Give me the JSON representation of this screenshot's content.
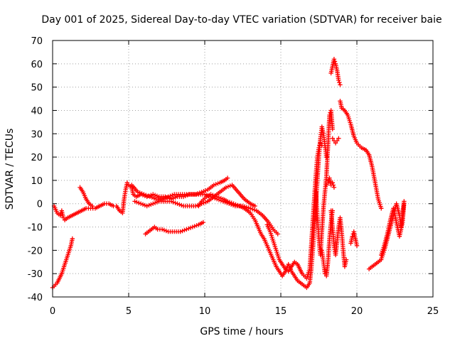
{
  "chart_data": {
    "type": "scatter",
    "title": "Day 001 of 2025, Sidereal Day-to-day VTEC variation (SDTVAR) for receiver baie",
    "xlabel": "GPS time / hours",
    "ylabel": "SDTVAR / TECUs",
    "xlim": [
      0,
      25
    ],
    "ylim": [
      -40,
      70
    ],
    "xticks": [
      0,
      5,
      10,
      15,
      20,
      25
    ],
    "yticks": [
      -40,
      -30,
      -20,
      -10,
      0,
      10,
      20,
      30,
      40,
      50,
      60,
      70
    ],
    "grid": true,
    "marker": "+",
    "color": "#ff0000",
    "series": [
      {
        "name": "seg1",
        "points": [
          [
            0.0,
            -36
          ],
          [
            0.3,
            -34
          ],
          [
            0.6,
            -30
          ],
          [
            0.9,
            -24
          ],
          [
            1.2,
            -18
          ],
          [
            1.3,
            -15
          ]
        ]
      },
      {
        "name": "seg2",
        "points": [
          [
            0.1,
            -1
          ],
          [
            0.3,
            -4
          ],
          [
            0.5,
            -5
          ],
          [
            0.6,
            -3
          ],
          [
            0.7,
            -6
          ],
          [
            0.8,
            -7
          ],
          [
            1.0,
            -6
          ],
          [
            1.3,
            -5
          ],
          [
            1.6,
            -4
          ],
          [
            1.9,
            -3
          ],
          [
            2.2,
            -2
          ],
          [
            2.5,
            -2
          ],
          [
            2.8,
            -2
          ],
          [
            3.1,
            -1
          ],
          [
            3.4,
            0
          ],
          [
            3.7,
            0
          ],
          [
            4.0,
            -1
          ],
          [
            4.2,
            -1
          ],
          [
            4.4,
            -3
          ],
          [
            4.6,
            -4
          ],
          [
            4.7,
            2
          ],
          [
            4.8,
            6
          ],
          [
            4.9,
            9
          ],
          [
            5.0,
            8
          ],
          [
            5.2,
            7
          ],
          [
            5.3,
            4
          ],
          [
            5.5,
            3
          ],
          [
            5.8,
            4
          ],
          [
            6.2,
            3
          ],
          [
            6.6,
            4
          ],
          [
            7.0,
            3
          ],
          [
            7.4,
            3
          ],
          [
            7.8,
            2
          ],
          [
            8.2,
            3
          ],
          [
            8.6,
            3
          ],
          [
            9.0,
            4
          ],
          [
            9.4,
            4
          ],
          [
            9.8,
            5
          ],
          [
            10.2,
            6
          ],
          [
            10.6,
            8
          ],
          [
            11.0,
            9
          ],
          [
            11.3,
            10
          ],
          [
            11.5,
            11
          ]
        ]
      },
      {
        "name": "seg3",
        "points": [
          [
            1.8,
            7
          ],
          [
            2.0,
            5
          ],
          [
            2.2,
            2
          ],
          [
            2.4,
            0
          ],
          [
            2.6,
            -1
          ]
        ]
      },
      {
        "name": "seg4",
        "points": [
          [
            5.4,
            1
          ],
          [
            5.8,
            0
          ],
          [
            6.2,
            -1
          ],
          [
            6.6,
            0
          ],
          [
            7.0,
            1
          ],
          [
            7.4,
            1
          ],
          [
            7.8,
            1
          ],
          [
            8.2,
            0
          ],
          [
            8.6,
            -1
          ],
          [
            9.0,
            -1
          ],
          [
            9.4,
            -1
          ],
          [
            9.8,
            0
          ],
          [
            10.2,
            1
          ],
          [
            10.6,
            3
          ],
          [
            11.0,
            5
          ],
          [
            11.4,
            7
          ],
          [
            11.8,
            8
          ],
          [
            12.2,
            5
          ],
          [
            12.6,
            2
          ],
          [
            13.0,
            0
          ],
          [
            13.3,
            -1
          ]
        ]
      },
      {
        "name": "seg5",
        "points": [
          [
            5.2,
            8
          ],
          [
            5.6,
            5
          ],
          [
            6.0,
            4
          ],
          [
            6.4,
            3
          ],
          [
            6.8,
            2
          ],
          [
            7.2,
            2
          ],
          [
            7.6,
            3
          ],
          [
            8.0,
            4
          ],
          [
            8.4,
            4
          ],
          [
            8.8,
            4
          ],
          [
            9.2,
            4
          ],
          [
            9.6,
            4
          ],
          [
            10.0,
            4
          ],
          [
            10.4,
            3
          ],
          [
            10.8,
            2
          ],
          [
            11.2,
            1
          ],
          [
            11.6,
            0
          ],
          [
            12.0,
            -1
          ],
          [
            12.5,
            -1
          ],
          [
            13.0,
            -2
          ],
          [
            13.4,
            -3
          ],
          [
            13.8,
            -5
          ],
          [
            14.2,
            -8
          ],
          [
            14.5,
            -11
          ],
          [
            14.8,
            -13
          ]
        ]
      },
      {
        "name": "seg6",
        "points": [
          [
            6.1,
            -13
          ],
          [
            6.3,
            -12
          ],
          [
            6.5,
            -11
          ],
          [
            6.7,
            -10
          ],
          [
            6.9,
            -11
          ],
          [
            7.2,
            -11
          ],
          [
            7.6,
            -12
          ],
          [
            8.0,
            -12
          ],
          [
            8.4,
            -12
          ],
          [
            8.8,
            -11
          ],
          [
            9.2,
            -10
          ],
          [
            9.6,
            -9
          ],
          [
            9.9,
            -8
          ]
        ]
      },
      {
        "name": "seg7",
        "points": [
          [
            9.6,
            -1
          ],
          [
            9.8,
            1
          ],
          [
            10.1,
            3
          ],
          [
            10.4,
            4
          ],
          [
            10.8,
            3
          ],
          [
            11.2,
            2
          ],
          [
            11.5,
            1
          ],
          [
            11.9,
            0
          ],
          [
            12.3,
            -1
          ],
          [
            12.6,
            -2
          ],
          [
            13.0,
            -4
          ],
          [
            13.3,
            -7
          ],
          [
            13.5,
            -10
          ],
          [
            13.7,
            -13
          ],
          [
            13.9,
            -15
          ],
          [
            14.1,
            -18
          ],
          [
            14.3,
            -21
          ],
          [
            14.5,
            -24
          ],
          [
            14.7,
            -27
          ],
          [
            14.9,
            -29
          ],
          [
            15.1,
            -31
          ],
          [
            15.3,
            -29
          ],
          [
            15.5,
            -26
          ],
          [
            15.7,
            -29
          ],
          [
            15.9,
            -31
          ],
          [
            16.1,
            -33
          ],
          [
            16.3,
            -34
          ],
          [
            16.5,
            -35
          ],
          [
            16.7,
            -36
          ],
          [
            16.9,
            -34
          ],
          [
            17.0,
            -28
          ],
          [
            17.1,
            -20
          ],
          [
            17.2,
            -10
          ],
          [
            17.3,
            0
          ],
          [
            17.4,
            10
          ],
          [
            17.5,
            20
          ],
          [
            17.6,
            28
          ],
          [
            17.7,
            33
          ],
          [
            17.8,
            30
          ],
          [
            17.9,
            25
          ],
          [
            18.0,
            20
          ]
        ]
      },
      {
        "name": "seg8",
        "points": [
          [
            14.1,
            -9
          ],
          [
            14.3,
            -12
          ],
          [
            14.5,
            -16
          ],
          [
            14.7,
            -20
          ],
          [
            14.9,
            -24
          ],
          [
            15.1,
            -26
          ],
          [
            15.3,
            -28
          ],
          [
            15.5,
            -29
          ],
          [
            15.7,
            -27
          ],
          [
            15.9,
            -25
          ],
          [
            16.1,
            -26
          ],
          [
            16.4,
            -30
          ],
          [
            16.7,
            -32
          ],
          [
            16.9,
            -28
          ],
          [
            17.0,
            -18
          ],
          [
            17.1,
            -8
          ],
          [
            17.2,
            2
          ],
          [
            17.3,
            12
          ],
          [
            17.4,
            20
          ],
          [
            17.5,
            24
          ],
          [
            17.6,
            26
          ],
          [
            17.7,
            25
          ]
        ]
      },
      {
        "name": "seg9",
        "points": [
          [
            17.3,
            5
          ],
          [
            17.4,
            -5
          ],
          [
            17.5,
            -15
          ],
          [
            17.6,
            -22
          ],
          [
            17.7,
            -12
          ],
          [
            17.8,
            -2
          ],
          [
            17.9,
            5
          ],
          [
            18.0,
            12
          ],
          [
            18.1,
            25
          ],
          [
            18.2,
            38
          ],
          [
            18.3,
            40
          ],
          [
            18.4,
            32
          ]
        ]
      },
      {
        "name": "seg10",
        "points": [
          [
            17.7,
            -20
          ],
          [
            17.8,
            -25
          ],
          [
            17.9,
            -30
          ],
          [
            18.0,
            -31
          ],
          [
            18.1,
            -25
          ],
          [
            18.2,
            -15
          ],
          [
            18.3,
            -8
          ],
          [
            18.4,
            -3
          ]
        ]
      },
      {
        "name": "seg11",
        "points": [
          [
            18.0,
            8
          ],
          [
            18.1,
            9
          ],
          [
            18.2,
            11
          ],
          [
            18.3,
            8
          ],
          [
            18.4,
            9
          ],
          [
            18.5,
            7
          ]
        ]
      },
      {
        "name": "seg12",
        "points": [
          [
            18.3,
            -3
          ],
          [
            18.4,
            -10
          ],
          [
            18.5,
            -18
          ],
          [
            18.6,
            -22
          ],
          [
            18.7,
            -16
          ],
          [
            18.8,
            -10
          ],
          [
            18.9,
            -6
          ],
          [
            19.0,
            -12
          ],
          [
            19.1,
            -20
          ],
          [
            19.2,
            -27
          ],
          [
            19.3,
            -24
          ]
        ]
      },
      {
        "name": "seg13",
        "points": [
          [
            18.3,
            56
          ],
          [
            18.4,
            59
          ],
          [
            18.5,
            62
          ],
          [
            18.6,
            60
          ],
          [
            18.7,
            57
          ],
          [
            18.8,
            53
          ],
          [
            18.9,
            51
          ]
        ]
      },
      {
        "name": "seg14",
        "points": [
          [
            18.9,
            44
          ],
          [
            19.0,
            41
          ],
          [
            19.2,
            40
          ],
          [
            19.4,
            38
          ],
          [
            19.6,
            34
          ],
          [
            19.8,
            29
          ],
          [
            20.0,
            26
          ],
          [
            20.3,
            24
          ],
          [
            20.6,
            23
          ],
          [
            20.8,
            21
          ],
          [
            21.0,
            16
          ],
          [
            21.2,
            9
          ],
          [
            21.4,
            2
          ],
          [
            21.6,
            -2
          ]
        ]
      },
      {
        "name": "seg15",
        "points": [
          [
            18.4,
            28
          ],
          [
            18.5,
            27
          ],
          [
            18.6,
            26
          ],
          [
            18.7,
            27
          ],
          [
            18.8,
            28
          ]
        ]
      },
      {
        "name": "seg16",
        "points": [
          [
            19.6,
            -17
          ],
          [
            19.7,
            -14
          ],
          [
            19.8,
            -12
          ],
          [
            19.9,
            -15
          ],
          [
            20.0,
            -18
          ]
        ]
      },
      {
        "name": "seg17",
        "points": [
          [
            20.8,
            -28
          ],
          [
            21.0,
            -27
          ],
          [
            21.2,
            -26
          ],
          [
            21.4,
            -25
          ],
          [
            21.6,
            -24
          ],
          [
            21.8,
            -20
          ],
          [
            22.0,
            -15
          ],
          [
            22.2,
            -10
          ],
          [
            22.4,
            -5
          ],
          [
            22.6,
            0
          ],
          [
            22.8,
            -5
          ],
          [
            22.9,
            -10
          ],
          [
            23.0,
            -5
          ],
          [
            23.1,
            1
          ]
        ]
      },
      {
        "name": "seg18",
        "points": [
          [
            21.6,
            -22
          ],
          [
            21.8,
            -18
          ],
          [
            22.0,
            -13
          ],
          [
            22.2,
            -7
          ],
          [
            22.4,
            -2
          ],
          [
            22.6,
            -8
          ],
          [
            22.8,
            -14
          ],
          [
            23.0,
            -8
          ],
          [
            23.1,
            0
          ]
        ]
      }
    ]
  }
}
